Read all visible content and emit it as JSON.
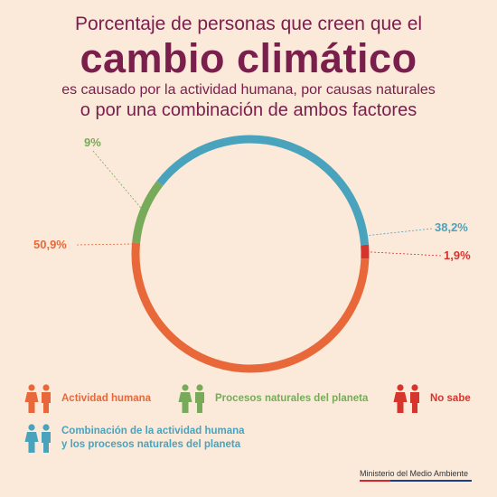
{
  "title": {
    "line1": "Porcentaje de personas que creen que el",
    "line2": "cambio climático",
    "line3": "es causado por la actividad humana, por causas naturales",
    "line4": "o por una combinación de ambos factores"
  },
  "colors": {
    "actividad_humana": "#e8683a",
    "procesos_naturales": "#77ab59",
    "combinacion": "#4aa3bc",
    "no_sabe": "#d6352e"
  },
  "chart_data": {
    "type": "pie",
    "donut": true,
    "slices": [
      {
        "name": "Actividad humana",
        "value": 50.9,
        "label": "50,9%"
      },
      {
        "name": "Procesos naturales del planeta",
        "value": 9,
        "label": "9%"
      },
      {
        "name": "Combinación de la actividad humana y los procesos naturales del planeta",
        "value": 38.2,
        "label": "38,2%"
      },
      {
        "name": "No sabe",
        "value": 1.9,
        "label": "1,9%"
      }
    ],
    "legend": [
      {
        "label": "Actividad humana",
        "icon": "two-people-icon"
      },
      {
        "label": "Procesos naturales del planeta",
        "icon": "two-people-icon"
      },
      {
        "label": "No sabe",
        "icon": "two-people-icon"
      },
      {
        "label_line1": "Combinación de la actividad humana",
        "label_line2": "y los procesos naturales del planeta",
        "icon": "two-people-icon"
      }
    ]
  },
  "footer": {
    "text": "Ministerio del Medio Ambiente"
  }
}
